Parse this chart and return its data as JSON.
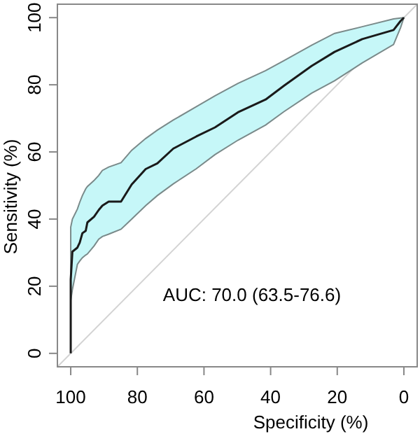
{
  "chart_data": {
    "type": "line",
    "xlabel": "Specificity (%)",
    "ylabel": "Sensitivity (%)",
    "annotations": [
      "AUC: 70.0 (63.5-76.6)"
    ],
    "xlim": [
      104,
      -4
    ],
    "ylim": [
      -4,
      104
    ],
    "xticks": [
      100,
      80,
      60,
      40,
      20,
      0
    ],
    "yticks": [
      0,
      20,
      40,
      60,
      80,
      100
    ],
    "series": [
      {
        "color": "#d3d3d3",
        "x": [
          104,
          -4
        ],
        "values": [
          -4,
          104
        ]
      },
      {
        "color": "#1a1a1a",
        "x": [
          100,
          100,
          99.5,
          98,
          97.3,
          96.5,
          95.5,
          95,
          93,
          91.6,
          90.5,
          88.6,
          84.9,
          81.7,
          77.5,
          74,
          69.2,
          62.3,
          56.7,
          49.8,
          41.5,
          36,
          27.7,
          20.8,
          12.5,
          3.1,
          1,
          0
        ],
        "values": [
          0,
          22,
          30.3,
          31.5,
          33,
          35.8,
          36.5,
          39,
          40.7,
          42.7,
          44,
          45.2,
          45.2,
          50.3,
          54.9,
          56.6,
          61,
          64.6,
          67.3,
          71.8,
          75.6,
          79.7,
          85.6,
          89.8,
          93.6,
          96.3,
          99,
          100
        ],
        "upper": [
          37.6,
          37.6,
          40,
          43,
          45,
          47,
          49,
          49.7,
          51.5,
          53,
          54.5,
          55.5,
          56.8,
          60.5,
          64,
          66.5,
          69.5,
          73.5,
          76.7,
          80.4,
          84.2,
          87.2,
          91.8,
          95.3,
          97.3,
          99.6,
          99.9,
          100
        ],
        "lower": [
          15.8,
          15.8,
          19,
          26.5,
          27.5,
          28.5,
          29.3,
          29.6,
          32,
          34,
          34.8,
          35.5,
          37,
          40,
          44,
          47,
          50.5,
          55,
          59.2,
          63.5,
          68,
          72,
          77.5,
          81.2,
          86.5,
          92,
          97,
          100
        ]
      }
    ]
  }
}
